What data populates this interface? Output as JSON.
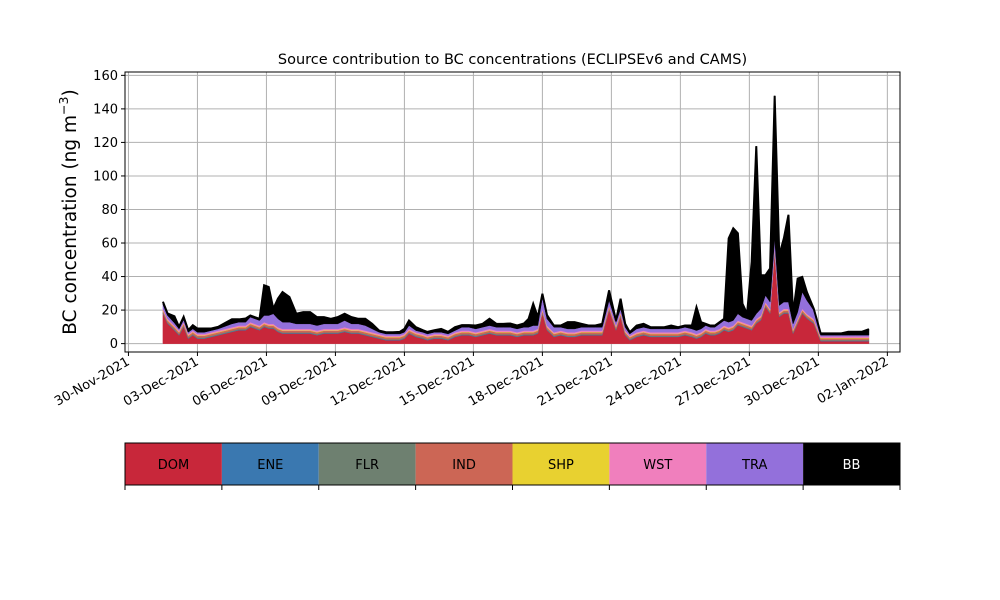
{
  "chart_data": {
    "type": "area",
    "stacked": true,
    "title": "Source contribution to BC concentrations (ECLIPSEv6 and CAMS)",
    "ylabel": "BC concentration (ng m",
    "ylabel_sup": "−3",
    "ylabel_close": ")",
    "xlabel": "",
    "ylim": [
      -5,
      162
    ],
    "yticks": [
      0,
      20,
      40,
      60,
      80,
      100,
      120,
      140,
      160
    ],
    "xlim": [
      -0.15,
      33.55
    ],
    "xticks": [
      0,
      3,
      6,
      9,
      12,
      15,
      18,
      21,
      24,
      27,
      30,
      33
    ],
    "xtick_labels": [
      "30-Nov-2021",
      "03-Dec-2021",
      "06-Dec-2021",
      "09-Dec-2021",
      "12-Dec-2021",
      "15-Dec-2021",
      "18-Dec-2021",
      "21-Dec-2021",
      "24-Dec-2021",
      "27-Dec-2021",
      "30-Dec-2021",
      "02-Jan-2022"
    ],
    "grid": true,
    "x_units": "days since 30-Nov-2021",
    "x": [
      1.5,
      1.7,
      2.0,
      2.2,
      2.4,
      2.6,
      2.8,
      3.0,
      3.3,
      3.6,
      3.9,
      4.2,
      4.5,
      4.8,
      5.1,
      5.3,
      5.5,
      5.7,
      5.9,
      6.1,
      6.3,
      6.5,
      6.7,
      7.0,
      7.3,
      7.6,
      7.9,
      8.2,
      8.5,
      8.8,
      9.1,
      9.4,
      9.7,
      10.0,
      10.3,
      10.6,
      10.9,
      11.2,
      11.5,
      11.8,
      12.0,
      12.2,
      12.5,
      12.8,
      13.0,
      13.3,
      13.6,
      13.9,
      14.2,
      14.5,
      14.8,
      15.1,
      15.4,
      15.7,
      16.0,
      16.3,
      16.6,
      16.9,
      17.2,
      17.4,
      17.6,
      17.8,
      18.0,
      18.2,
      18.5,
      18.8,
      19.1,
      19.4,
      19.7,
      20.0,
      20.3,
      20.6,
      20.9,
      21.2,
      21.4,
      21.6,
      21.8,
      22.1,
      22.4,
      22.7,
      23.0,
      23.3,
      23.6,
      23.9,
      24.2,
      24.5,
      24.7,
      24.9,
      25.1,
      25.3,
      25.5,
      25.7,
      25.9,
      26.1,
      26.3,
      26.5,
      26.7,
      26.9,
      27.1,
      27.3,
      27.5,
      27.7,
      27.9,
      28.1,
      28.3,
      28.5,
      28.7,
      28.9,
      29.1,
      29.3,
      29.5,
      29.8,
      30.1,
      30.4,
      30.7,
      31.0,
      31.3,
      31.6,
      31.9,
      32.2
    ],
    "series": [
      {
        "name": "DOM",
        "color": "#c8273a",
        "values": [
          18,
          12,
          8,
          5,
          10,
          3,
          5,
          3,
          3,
          4,
          5,
          6,
          7,
          8,
          8,
          10,
          9,
          8,
          10,
          9,
          9,
          7,
          6,
          6,
          6,
          6,
          6,
          5,
          6,
          6,
          6,
          7,
          6,
          6,
          5,
          4,
          3,
          2,
          2,
          2,
          3,
          6,
          4,
          3,
          2,
          3,
          3,
          2,
          4,
          5,
          5,
          4,
          5,
          6,
          5,
          5,
          5,
          4,
          5,
          5,
          5,
          6,
          18,
          8,
          4,
          5,
          4,
          4,
          5,
          5,
          5,
          5,
          20,
          8,
          16,
          5,
          2,
          4,
          5,
          4,
          4,
          4,
          4,
          4,
          5,
          4,
          3,
          4,
          6,
          5,
          5,
          6,
          8,
          7,
          8,
          11,
          10,
          9,
          8,
          12,
          14,
          22,
          18,
          55,
          16,
          18,
          18,
          6,
          12,
          18,
          15,
          12,
          1.5,
          1.5,
          1.5,
          1.5,
          1.5,
          1.5,
          1.5,
          1.5
        ]
      },
      {
        "name": "ENE",
        "color": "#3a78b0",
        "values": [
          0.3,
          0.3,
          0.3,
          0.3,
          0.3,
          0.3,
          0.3,
          0.3,
          0.3,
          0.3,
          0.3,
          0.3,
          0.3,
          0.3,
          0.3,
          0.3,
          0.3,
          0.3,
          0.3,
          0.3,
          0.3,
          0.3,
          0.3,
          0.3,
          0.3,
          0.3,
          0.3,
          0.3,
          0.3,
          0.3,
          0.3,
          0.3,
          0.3,
          0.3,
          0.3,
          0.3,
          0.3,
          0.3,
          0.3,
          0.3,
          0.3,
          0.3,
          0.3,
          0.3,
          0.3,
          0.3,
          0.3,
          0.3,
          0.3,
          0.3,
          0.3,
          0.3,
          0.3,
          0.3,
          0.3,
          0.3,
          0.3,
          0.3,
          0.3,
          0.3,
          0.3,
          0.3,
          0.3,
          0.3,
          0.3,
          0.3,
          0.3,
          0.3,
          0.3,
          0.3,
          0.3,
          0.3,
          0.3,
          0.3,
          0.3,
          0.3,
          0.3,
          0.3,
          0.3,
          0.3,
          0.3,
          0.3,
          0.3,
          0.3,
          0.3,
          0.3,
          0.3,
          0.3,
          0.3,
          0.3,
          0.3,
          0.3,
          0.3,
          0.3,
          0.3,
          0.3,
          0.3,
          0.3,
          0.3,
          0.3,
          0.3,
          0.3,
          0.3,
          0.3,
          0.3,
          0.3,
          0.3,
          0.3,
          0.3,
          0.3,
          0.3,
          0.3,
          0.3,
          0.3,
          0.3,
          0.3,
          0.3,
          0.3,
          0.3,
          0.3
        ]
      },
      {
        "name": "FLR",
        "color": "#6e8070",
        "values": [
          0.4,
          0.4,
          0.4,
          0.4,
          0.4,
          0.4,
          0.4,
          0.4,
          0.4,
          0.4,
          0.4,
          0.4,
          0.4,
          0.4,
          0.4,
          0.4,
          0.4,
          0.4,
          0.4,
          0.4,
          0.4,
          0.4,
          0.4,
          0.4,
          0.4,
          0.4,
          0.4,
          0.4,
          0.4,
          0.4,
          0.4,
          0.4,
          0.4,
          0.4,
          0.4,
          0.4,
          0.4,
          0.4,
          0.4,
          0.4,
          0.4,
          0.4,
          0.4,
          0.4,
          0.4,
          0.4,
          0.4,
          0.4,
          0.4,
          0.4,
          0.4,
          0.4,
          0.4,
          0.4,
          0.4,
          0.4,
          0.4,
          0.4,
          0.4,
          0.4,
          0.4,
          0.4,
          0.4,
          0.4,
          0.4,
          0.4,
          0.4,
          0.4,
          0.4,
          0.4,
          0.4,
          0.4,
          0.4,
          0.4,
          0.4,
          0.4,
          0.4,
          0.4,
          0.4,
          0.4,
          0.4,
          0.4,
          0.4,
          0.4,
          0.4,
          0.4,
          0.4,
          0.4,
          0.4,
          0.4,
          0.4,
          0.4,
          0.4,
          0.4,
          0.4,
          0.4,
          0.4,
          0.4,
          0.4,
          0.4,
          0.4,
          0.4,
          0.4,
          0.4,
          0.4,
          0.4,
          0.4,
          0.4,
          0.4,
          0.4,
          0.4,
          0.4,
          0.4,
          0.4,
          0.4,
          0.4,
          0.4,
          0.4,
          0.4,
          0.4
        ]
      },
      {
        "name": "IND",
        "color": "#cc6655",
        "values": [
          1.0,
          1.0,
          1.0,
          1.0,
          1.0,
          1.0,
          1.0,
          1.0,
          1.0,
          1.0,
          1.0,
          1.0,
          1.0,
          1.0,
          1.0,
          1.0,
          1.0,
          1.0,
          1.0,
          1.0,
          1.0,
          1.0,
          1.0,
          1.0,
          1.0,
          1.0,
          1.0,
          1.0,
          1.0,
          1.0,
          1.0,
          1.0,
          1.0,
          1.0,
          1.0,
          1.0,
          1.0,
          1.0,
          1.0,
          1.0,
          1.0,
          1.0,
          1.0,
          1.0,
          1.0,
          1.0,
          1.0,
          1.0,
          1.0,
          1.0,
          1.0,
          1.0,
          1.0,
          1.0,
          1.0,
          1.0,
          1.0,
          1.0,
          1.0,
          1.0,
          1.0,
          1.0,
          1.0,
          1.0,
          1.0,
          1.0,
          1.0,
          1.0,
          1.0,
          1.0,
          1.0,
          1.0,
          1.0,
          1.0,
          1.0,
          1.0,
          1.0,
          1.0,
          1.0,
          1.0,
          1.0,
          1.0,
          1.0,
          1.0,
          1.0,
          1.0,
          1.0,
          1.0,
          1.0,
          1.0,
          1.0,
          1.0,
          1.0,
          1.0,
          1.0,
          1.0,
          1.0,
          1.0,
          1.0,
          1.0,
          1.0,
          1.0,
          1.0,
          1.0,
          1.0,
          1.0,
          1.0,
          1.0,
          1.0,
          1.0,
          1.0,
          1.0,
          1.0,
          1.0,
          1.0,
          1.0,
          1.0,
          1.0,
          1.0,
          1.0
        ]
      },
      {
        "name": "SHP",
        "color": "#e8d130",
        "values": [
          0.3,
          0.3,
          0.3,
          0.3,
          0.3,
          0.3,
          0.3,
          0.3,
          0.3,
          0.3,
          0.3,
          0.3,
          0.3,
          0.3,
          0.3,
          0.3,
          0.3,
          0.3,
          0.3,
          0.3,
          0.3,
          0.3,
          0.3,
          0.3,
          0.3,
          0.3,
          0.3,
          0.3,
          0.3,
          0.3,
          0.3,
          0.3,
          0.3,
          0.3,
          0.3,
          0.3,
          0.3,
          0.3,
          0.3,
          0.3,
          0.3,
          0.3,
          0.3,
          0.3,
          0.3,
          0.3,
          0.3,
          0.3,
          0.3,
          0.3,
          0.3,
          0.3,
          0.3,
          0.3,
          0.3,
          0.3,
          0.3,
          0.3,
          0.3,
          0.3,
          0.3,
          0.3,
          0.3,
          0.3,
          0.3,
          0.3,
          0.3,
          0.3,
          0.3,
          0.3,
          0.3,
          0.3,
          0.3,
          0.3,
          0.3,
          0.3,
          0.3,
          0.3,
          0.3,
          0.3,
          0.3,
          0.3,
          0.3,
          0.3,
          0.3,
          0.3,
          0.3,
          0.3,
          0.3,
          0.3,
          0.3,
          0.3,
          0.3,
          0.3,
          0.3,
          0.3,
          0.3,
          0.3,
          0.3,
          0.3,
          0.3,
          0.3,
          0.3,
          0.3,
          0.3,
          0.3,
          0.3,
          0.3,
          0.3,
          0.3,
          0.3,
          0.3,
          0.3,
          0.3,
          0.3,
          0.3,
          0.3,
          0.3,
          0.3,
          0.3
        ]
      },
      {
        "name": "WST",
        "color": "#f07fbd",
        "values": [
          0.8,
          0.8,
          0.8,
          0.8,
          0.8,
          0.8,
          0.8,
          0.8,
          0.8,
          0.8,
          0.8,
          0.8,
          0.8,
          0.8,
          0.8,
          0.8,
          0.8,
          0.8,
          0.8,
          0.8,
          0.8,
          0.8,
          0.8,
          0.8,
          0.8,
          0.8,
          0.8,
          0.8,
          0.8,
          0.8,
          0.8,
          0.8,
          0.8,
          0.8,
          0.8,
          0.8,
          0.8,
          0.8,
          0.8,
          0.8,
          0.8,
          0.8,
          0.8,
          0.8,
          0.8,
          0.8,
          0.8,
          0.8,
          0.8,
          0.8,
          0.8,
          0.8,
          0.8,
          0.8,
          0.8,
          0.8,
          0.8,
          0.8,
          0.8,
          0.8,
          0.8,
          0.8,
          0.8,
          0.8,
          0.8,
          0.8,
          0.8,
          0.8,
          0.8,
          0.8,
          0.8,
          0.8,
          0.8,
          0.8,
          0.8,
          0.8,
          0.8,
          0.8,
          0.8,
          0.8,
          0.8,
          0.8,
          0.8,
          0.8,
          0.8,
          0.8,
          0.8,
          0.8,
          0.8,
          0.8,
          0.8,
          0.8,
          0.8,
          0.8,
          0.8,
          0.8,
          0.8,
          0.8,
          0.8,
          0.8,
          0.8,
          0.8,
          0.8,
          0.8,
          0.8,
          0.8,
          0.8,
          0.8,
          0.8,
          0.8,
          0.8,
          0.8,
          0.8,
          0.8,
          0.8,
          0.8,
          0.8,
          0.8,
          0.8,
          0.8
        ]
      },
      {
        "name": "TRA",
        "color": "#9370db",
        "values": [
          2.5,
          2,
          1.5,
          1,
          1.5,
          1,
          1,
          1,
          1,
          1,
          1,
          1.5,
          2,
          2,
          2,
          3,
          3,
          3,
          4,
          5,
          6,
          5,
          4,
          4,
          3,
          3,
          3,
          3,
          3,
          3,
          3,
          4,
          3,
          3,
          3,
          2,
          1,
          1,
          1,
          1,
          1,
          2,
          1,
          1,
          1,
          1,
          1,
          1,
          1,
          2,
          2,
          2,
          2,
          2,
          2,
          2,
          2,
          2,
          2,
          2,
          3,
          2,
          7,
          4,
          3,
          2,
          2,
          2,
          2,
          2,
          2,
          2,
          3,
          2,
          2,
          2,
          1,
          2,
          2,
          2,
          2,
          2,
          2,
          2,
          2,
          2,
          2,
          2,
          2,
          2,
          2,
          3,
          3,
          3,
          3,
          4,
          3,
          3,
          3,
          3,
          4,
          4,
          4,
          5,
          4,
          4,
          4,
          3,
          4,
          10,
          8,
          5,
          0.8,
          0.8,
          0.8,
          0.8,
          0.8,
          0.8,
          0.8,
          0.8
        ]
      },
      {
        "name": "BB",
        "color": "#000000",
        "values": [
          1.7,
          1.2,
          4,
          1.2,
          1.7,
          1.2,
          2.2,
          2.2,
          2.2,
          1.2,
          1.2,
          2,
          2.7,
          1.7,
          2.2,
          1,
          1,
          1,
          18,
          17,
          3,
          12,
          18,
          15,
          6,
          7,
          7,
          5,
          4,
          3,
          4,
          4,
          4,
          3,
          4,
          3,
          1,
          1,
          1,
          1.2,
          2,
          3,
          2,
          1.2,
          1.2,
          1.2,
          2,
          1.2,
          2,
          1.2,
          1.2,
          2,
          2,
          4,
          2,
          2,
          2.2,
          2,
          2.2,
          5,
          13,
          5,
          2,
          2.2,
          1,
          1,
          4,
          4,
          2,
          1,
          1,
          2,
          6,
          1,
          6,
          2,
          1,
          2,
          2,
          1,
          1,
          1,
          2,
          1,
          1,
          2,
          14,
          4,
          1,
          1,
          1,
          1,
          1,
          50,
          55,
          48,
          8,
          3,
          35,
          100,
          20,
          12,
          20,
          85,
          30,
          38,
          52,
          6,
          20,
          9,
          5,
          1,
          1,
          1,
          1,
          1,
          2,
          2,
          2,
          3.5
        ]
      }
    ],
    "legend": [
      "DOM",
      "ENE",
      "FLR",
      "IND",
      "SHP",
      "WST",
      "TRA",
      "BB"
    ]
  }
}
